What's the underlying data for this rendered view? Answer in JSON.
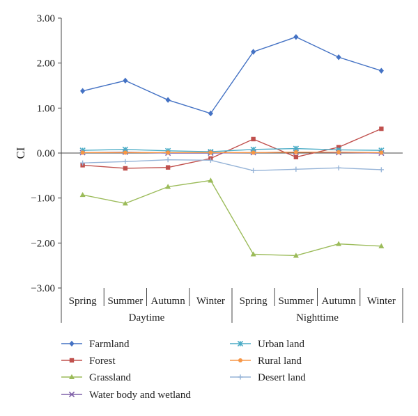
{
  "chart_data": {
    "type": "line",
    "ylabel": "CI",
    "ylim": [
      -3,
      3
    ],
    "yticks": [
      "3.00",
      "2.00",
      "1.00",
      "0.00",
      "−1.00",
      "−2.00",
      "−3.00"
    ],
    "ytick_values": [
      3,
      2,
      1,
      0,
      -1,
      -2,
      -3
    ],
    "categories": [
      "Spring",
      "Summer",
      "Autumn",
      "Winter",
      "Spring",
      "Summer",
      "Autumn",
      "Winter"
    ],
    "groups": [
      {
        "label": "Daytime",
        "span": [
          0,
          3
        ]
      },
      {
        "label": "Nighttime",
        "span": [
          4,
          7
        ]
      }
    ],
    "legend_placement": "bottom",
    "series": [
      {
        "name": "Farmland",
        "color": "#4472c4",
        "marker": "diamond",
        "values": [
          1.38,
          1.61,
          1.18,
          0.88,
          2.25,
          2.58,
          2.13,
          1.83
        ]
      },
      {
        "name": "Forest",
        "color": "#c0504d",
        "marker": "square",
        "values": [
          -0.27,
          -0.34,
          -0.32,
          -0.12,
          0.31,
          -0.09,
          0.13,
          0.54
        ]
      },
      {
        "name": "Grassland",
        "color": "#9bbb59",
        "marker": "triangle",
        "values": [
          -0.93,
          -1.12,
          -0.75,
          -0.61,
          -2.25,
          -2.28,
          -2.02,
          -2.07
        ]
      },
      {
        "name": "Water body and wetland",
        "color": "#7f60a8",
        "marker": "x",
        "values": [
          0.01,
          0.02,
          0.0,
          0.0,
          0.01,
          0.02,
          0.01,
          0.0
        ]
      },
      {
        "name": "Urban land",
        "color": "#4bacc6",
        "marker": "star",
        "values": [
          0.06,
          0.08,
          0.05,
          0.03,
          0.08,
          0.1,
          0.07,
          0.06
        ]
      },
      {
        "name": "Rural land",
        "color": "#f79646",
        "marker": "circle",
        "values": [
          0.01,
          0.01,
          0.01,
          0.01,
          0.01,
          0.02,
          0.02,
          0.01
        ]
      },
      {
        "name": "Desert land",
        "color": "#95b3d7",
        "marker": "plus",
        "values": [
          -0.22,
          -0.19,
          -0.15,
          -0.16,
          -0.39,
          -0.36,
          -0.33,
          -0.37
        ]
      }
    ]
  }
}
